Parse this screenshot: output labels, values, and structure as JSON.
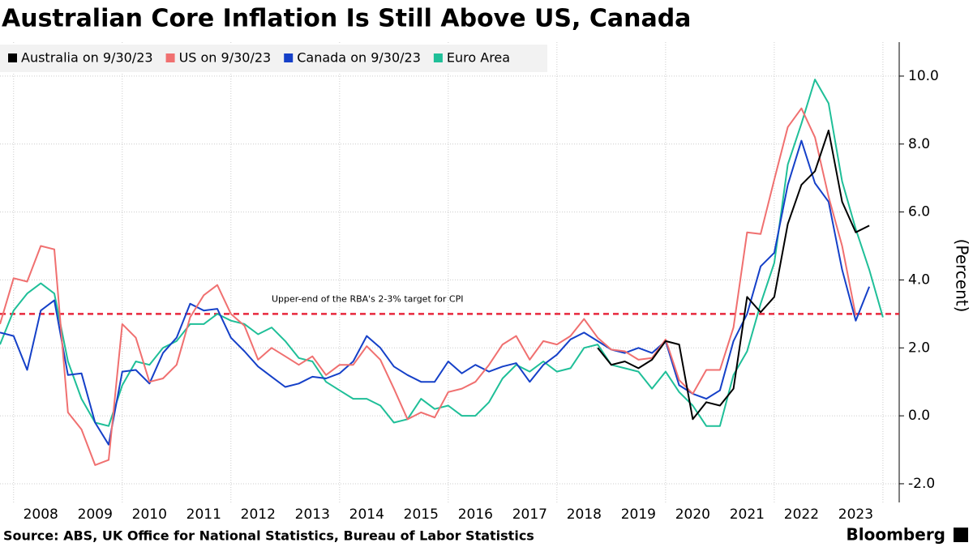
{
  "chart_data": {
    "type": "line",
    "title": "Australian Core Inflation Is Still Above US, Canada",
    "y_label": "(Percent)",
    "source": "Source: ABS, UK Office for National Statistics, Bureau of Labor Statistics",
    "brand": "Bloomberg",
    "x": [
      2007.75,
      2008.0,
      2008.25,
      2008.5,
      2008.75,
      2009.0,
      2009.25,
      2009.5,
      2009.75,
      2010.0,
      2010.25,
      2010.5,
      2010.75,
      2011.0,
      2011.25,
      2011.5,
      2011.75,
      2012.0,
      2012.25,
      2012.5,
      2012.75,
      2013.0,
      2013.25,
      2013.5,
      2013.75,
      2014.0,
      2014.25,
      2014.5,
      2014.75,
      2015.0,
      2015.25,
      2015.5,
      2015.75,
      2016.0,
      2016.25,
      2016.5,
      2016.75,
      2017.0,
      2017.25,
      2017.5,
      2017.75,
      2018.0,
      2018.25,
      2018.5,
      2018.75,
      2019.0,
      2019.25,
      2019.5,
      2019.75,
      2020.0,
      2020.25,
      2020.5,
      2020.75,
      2021.0,
      2021.25,
      2021.5,
      2021.75,
      2022.0,
      2022.25,
      2022.5,
      2022.75,
      2023.0,
      2023.25,
      2023.5,
      2023.75,
      2024.0
    ],
    "series": [
      {
        "name": "Australia on 9/30/23",
        "color": "#000000",
        "values": [
          null,
          null,
          null,
          null,
          null,
          null,
          null,
          null,
          null,
          null,
          null,
          null,
          null,
          null,
          null,
          null,
          null,
          null,
          null,
          null,
          null,
          null,
          null,
          null,
          null,
          null,
          null,
          null,
          null,
          null,
          null,
          null,
          null,
          null,
          null,
          null,
          null,
          null,
          null,
          null,
          null,
          null,
          null,
          null,
          2.0,
          1.5,
          1.6,
          1.4,
          1.65,
          2.2,
          2.1,
          -0.1,
          0.4,
          0.3,
          0.8,
          3.5,
          3.05,
          3.5,
          5.65,
          6.8,
          7.2,
          8.4,
          6.3,
          5.4,
          5.6,
          null
        ]
      },
      {
        "name": "US on 9/30/23",
        "color": "#f07070",
        "values": [
          2.7,
          4.05,
          3.95,
          5.0,
          4.9,
          0.1,
          -0.4,
          -1.45,
          -1.3,
          2.7,
          2.3,
          1.0,
          1.1,
          1.5,
          2.9,
          3.55,
          3.85,
          3.0,
          2.65,
          1.65,
          2.0,
          1.75,
          1.5,
          1.75,
          1.2,
          1.5,
          1.5,
          2.05,
          1.65,
          0.8,
          -0.1,
          0.1,
          -0.05,
          0.7,
          0.8,
          1.0,
          1.5,
          2.1,
          2.35,
          1.65,
          2.2,
          2.1,
          2.35,
          2.85,
          2.3,
          1.95,
          1.9,
          1.65,
          1.7,
          2.25,
          1.05,
          0.65,
          1.35,
          1.35,
          2.6,
          5.4,
          5.35,
          6.95,
          8.5,
          9.05,
          8.2,
          6.45,
          5.0,
          2.95,
          null,
          null
        ]
      },
      {
        "name": "Canada on 9/30/23",
        "color": "#1540c8",
        "values": [
          2.45,
          2.35,
          1.35,
          3.1,
          3.4,
          1.2,
          1.25,
          -0.2,
          -0.85,
          1.3,
          1.35,
          0.95,
          1.85,
          2.3,
          3.3,
          3.1,
          3.15,
          2.3,
          1.9,
          1.45,
          1.15,
          0.85,
          0.95,
          1.15,
          1.1,
          1.25,
          1.6,
          2.35,
          2.0,
          1.45,
          1.2,
          1.0,
          1.0,
          1.6,
          1.25,
          1.5,
          1.3,
          1.45,
          1.55,
          1.0,
          1.5,
          1.8,
          2.25,
          2.45,
          2.2,
          1.95,
          1.85,
          2.0,
          1.85,
          2.2,
          0.9,
          0.65,
          0.5,
          0.75,
          2.2,
          3.0,
          4.4,
          4.8,
          6.8,
          8.1,
          6.85,
          6.3,
          4.3,
          2.8,
          3.8,
          null
        ]
      },
      {
        "name": "Euro Area",
        "color": "#1fbf98",
        "values": [
          2.1,
          3.1,
          3.6,
          3.9,
          3.6,
          1.6,
          0.5,
          -0.2,
          -0.3,
          0.9,
          1.6,
          1.5,
          2.0,
          2.2,
          2.7,
          2.7,
          3.0,
          2.8,
          2.7,
          2.4,
          2.6,
          2.2,
          1.7,
          1.6,
          1.0,
          0.75,
          0.5,
          0.5,
          0.3,
          -0.2,
          -0.1,
          0.5,
          0.2,
          0.3,
          0.0,
          0.0,
          0.4,
          1.1,
          1.5,
          1.3,
          1.6,
          1.3,
          1.4,
          2.0,
          2.1,
          1.5,
          1.4,
          1.3,
          0.8,
          1.3,
          0.7,
          0.3,
          -0.3,
          -0.3,
          1.2,
          1.9,
          3.3,
          4.5,
          7.4,
          8.6,
          9.9,
          9.2,
          6.9,
          5.5,
          4.3,
          2.9
        ]
      }
    ],
    "reference_line": {
      "value": 3,
      "label": "Upper-end of the RBA's 2-3% target for CPI",
      "color": "#e8283c"
    },
    "xlim": [
      2007.75,
      2024.3
    ],
    "xticks": [
      {
        "value": 2008.5,
        "label": "2008"
      },
      {
        "value": 2009.5,
        "label": "2009"
      },
      {
        "value": 2010.5,
        "label": "2010"
      },
      {
        "value": 2011.5,
        "label": "2011"
      },
      {
        "value": 2012.5,
        "label": "2012"
      },
      {
        "value": 2013.5,
        "label": "2013"
      },
      {
        "value": 2014.5,
        "label": "2014"
      },
      {
        "value": 2015.5,
        "label": "2015"
      },
      {
        "value": 2016.5,
        "label": "2016"
      },
      {
        "value": 2017.5,
        "label": "2017"
      },
      {
        "value": 2018.5,
        "label": "2018"
      },
      {
        "value": 2019.5,
        "label": "2019"
      },
      {
        "value": 2020.5,
        "label": "2020"
      },
      {
        "value": 2021.5,
        "label": "2021"
      },
      {
        "value": 2022.5,
        "label": "2022"
      },
      {
        "value": 2023.5,
        "label": "2023"
      }
    ],
    "xgrid": [
      2008,
      2010,
      2012,
      2014,
      2016,
      2018,
      2020,
      2022,
      2024
    ],
    "ylim": [
      -2.55,
      11.0
    ],
    "yticks": [
      {
        "value": -2,
        "label": "-2.0"
      },
      {
        "value": 0,
        "label": "0.0"
      },
      {
        "value": 2,
        "label": "2.0"
      },
      {
        "value": 4,
        "label": "4.0"
      },
      {
        "value": 6,
        "label": "6.0"
      },
      {
        "value": 8,
        "label": "8.0"
      },
      {
        "value": 10,
        "label": "10.0"
      }
    ],
    "grid": true
  }
}
